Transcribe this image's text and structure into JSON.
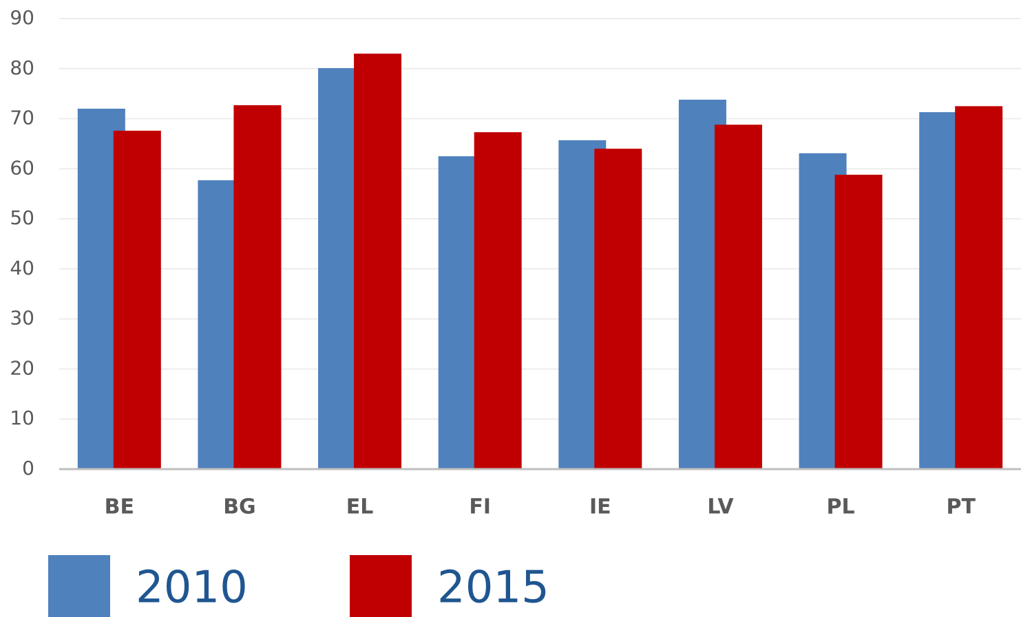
{
  "chart_data": {
    "type": "bar",
    "categories": [
      "BE",
      "BG",
      "EL",
      "FI",
      "IE",
      "LV",
      "PL",
      "PT"
    ],
    "series": [
      {
        "name": "2010",
        "color": "#4f81bd",
        "values": [
          72.0,
          57.7,
          80.1,
          62.5,
          65.7,
          73.8,
          63.1,
          71.3
        ]
      },
      {
        "name": "2015",
        "color": "#c00000",
        "values": [
          67.6,
          72.7,
          83.0,
          67.3,
          64.0,
          68.8,
          58.8,
          72.5
        ]
      }
    ],
    "ylim": [
      0,
      90
    ],
    "yticks": [
      0,
      10,
      20,
      30,
      40,
      50,
      60,
      70,
      80,
      90
    ],
    "grid": true,
    "legend": "bottom"
  }
}
